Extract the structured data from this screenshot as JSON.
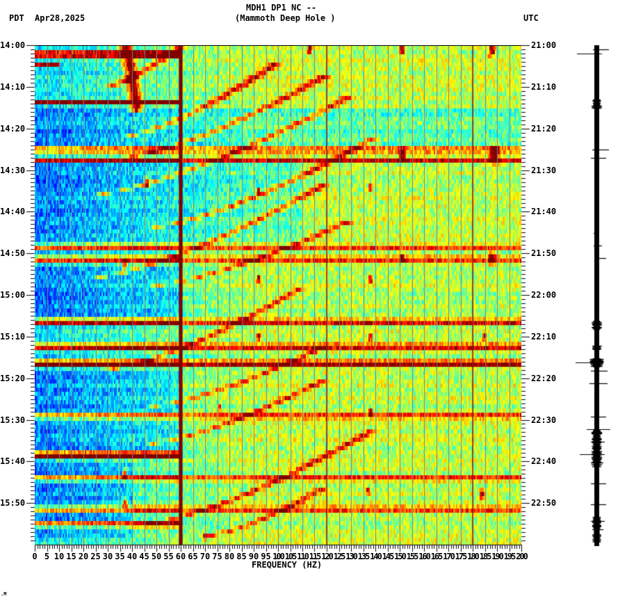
{
  "header": {
    "title_line1": "MDH1 DP1 NC --",
    "title_line2": "(Mammoth Deep Hole )",
    "left_timezone": "PDT",
    "date": "Apr28,2025",
    "right_timezone": "UTC"
  },
  "footer": {
    "corner_mark": ".M"
  },
  "chart_data": [
    {
      "type": "heatmap",
      "title": "MDH1 DP1 NC -- (Mammoth Deep Hole )",
      "subtitle": "Apr28,2025",
      "xlabel": "FREQUENCY (HZ)",
      "ylabel_left": "PDT",
      "ylabel_right": "UTC",
      "xlim": [
        0,
        200
      ],
      "x_ticks": [
        0,
        5,
        10,
        15,
        20,
        25,
        30,
        35,
        40,
        45,
        50,
        55,
        60,
        65,
        70,
        75,
        80,
        85,
        90,
        95,
        100,
        105,
        110,
        115,
        120,
        125,
        130,
        135,
        140,
        145,
        150,
        155,
        160,
        165,
        170,
        175,
        180,
        185,
        190,
        195,
        200
      ],
      "x_minor_tick_step": 1,
      "y_ticks_left": [
        "14:00",
        "14:10",
        "14:20",
        "14:30",
        "14:40",
        "14:50",
        "15:00",
        "15:10",
        "15:20",
        "15:30",
        "15:40",
        "15:50"
      ],
      "y_ticks_right": [
        "21:00",
        "21:10",
        "21:20",
        "21:30",
        "21:40",
        "21:50",
        "22:00",
        "22:10",
        "22:20",
        "22:30",
        "22:40",
        "22:50"
      ],
      "y_minor_tick_minutes": 1,
      "time_range_minutes": 120,
      "colormap": "jet",
      "grid": {
        "vertical_every_hz": 5,
        "color": "#808080"
      },
      "persistent_lines_hz": [
        {
          "freq": 60,
          "strength": "very high",
          "width_hz": 1.5
        },
        {
          "freq": 120,
          "strength": "high",
          "width_hz": 0.5
        },
        {
          "freq": 180,
          "strength": "high",
          "width_hz": 0.5
        }
      ],
      "broadband_events_min": [
        {
          "t": 2,
          "strength": 1.0,
          "fmax": 60
        },
        {
          "t": 4.5,
          "strength": 0.7,
          "fmax": 10
        },
        {
          "t": 13.5,
          "strength": 0.8,
          "fmax": 60
        },
        {
          "t": 25,
          "strength": 0.6,
          "fmax": 200
        },
        {
          "t": 27.5,
          "strength": 0.65,
          "fmax": 200
        },
        {
          "t": 48.5,
          "strength": 0.55,
          "fmax": 200
        },
        {
          "t": 51.5,
          "strength": 0.6,
          "fmax": 200
        },
        {
          "t": 66.5,
          "strength": 0.75,
          "fmax": 200
        },
        {
          "t": 72.5,
          "strength": 0.75,
          "fmax": 200
        },
        {
          "t": 76.5,
          "strength": 1.0,
          "fmax": 200
        },
        {
          "t": 89,
          "strength": 0.6,
          "fmax": 200
        },
        {
          "t": 98.5,
          "strength": 1.0,
          "fmax": 60
        },
        {
          "t": 104,
          "strength": 0.55,
          "fmax": 200
        },
        {
          "t": 111.5,
          "strength": 0.6,
          "fmax": 200
        },
        {
          "t": 115,
          "strength": 0.7,
          "fmax": 60
        }
      ],
      "low_energy_bands_min": [
        {
          "t0": 15,
          "t1": 24,
          "fmin": 0,
          "fmax": 200
        },
        {
          "t0": 28,
          "t1": 47,
          "fmin": 0,
          "fmax": 110
        },
        {
          "t0": 53,
          "t1": 65,
          "fmin": 0,
          "fmax": 60
        },
        {
          "t0": 78,
          "t1": 97,
          "fmin": 0,
          "fmax": 60
        },
        {
          "t0": 100,
          "t1": 118,
          "fmin": 0,
          "fmax": 40
        }
      ],
      "chirps": [
        {
          "t_start": 0,
          "f_start": 37,
          "t_end": 16,
          "f_end": 42,
          "strength": 0.9
        },
        {
          "t_start": 10,
          "f_start": 28,
          "t_end": 0,
          "f_end": 60,
          "strength": 0.6
        },
        {
          "t_start": 22,
          "f_start": 35,
          "t_end": 4,
          "f_end": 100,
          "strength": 0.6
        },
        {
          "t_start": 27,
          "f_start": 35,
          "t_end": 7,
          "f_end": 120,
          "strength": 0.55
        },
        {
          "t_start": 36,
          "f_start": 22,
          "t_end": 12,
          "f_end": 130,
          "strength": 0.55
        },
        {
          "t_start": 44,
          "f_start": 45,
          "t_end": 22,
          "f_end": 140,
          "strength": 0.55
        },
        {
          "t_start": 56,
          "f_start": 22,
          "t_end": 33,
          "f_end": 120,
          "strength": 0.55
        },
        {
          "t_start": 58,
          "f_start": 45,
          "t_end": 42,
          "f_end": 130,
          "strength": 0.5
        },
        {
          "t_start": 78,
          "f_start": 28,
          "t_end": 58,
          "f_end": 110,
          "strength": 0.55
        },
        {
          "t_start": 87,
          "f_start": 45,
          "t_end": 72,
          "f_end": 120,
          "strength": 0.5
        },
        {
          "t_start": 96,
          "f_start": 45,
          "t_end": 80,
          "f_end": 120,
          "strength": 0.5
        },
        {
          "t_start": 115,
          "f_start": 45,
          "t_end": 92,
          "f_end": 140,
          "strength": 0.55
        },
        {
          "t_start": 118,
          "f_start": 70,
          "t_end": 106,
          "f_end": 120,
          "strength": 0.5
        }
      ],
      "hot_spots": [
        {
          "t": 1,
          "f": 113,
          "r": 1.5
        },
        {
          "t": 1,
          "f": 151,
          "r": 1.5
        },
        {
          "t": 1,
          "f": 188,
          "r": 2
        },
        {
          "t": 26,
          "f": 151,
          "r": 2
        },
        {
          "t": 26,
          "f": 189,
          "r": 3
        },
        {
          "t": 33,
          "f": 46,
          "r": 2
        },
        {
          "t": 35,
          "f": 92,
          "r": 1.2
        },
        {
          "t": 34,
          "f": 138,
          "r": 1.2
        },
        {
          "t": 51,
          "f": 151,
          "r": 1.5
        },
        {
          "t": 51,
          "f": 188,
          "r": 2
        },
        {
          "t": 53,
          "f": 37,
          "r": 1.5
        },
        {
          "t": 56,
          "f": 92,
          "r": 1.2
        },
        {
          "t": 56,
          "f": 138,
          "r": 1.2
        },
        {
          "t": 70,
          "f": 92,
          "r": 1.2
        },
        {
          "t": 70,
          "f": 138,
          "r": 1.2
        },
        {
          "t": 70,
          "f": 185,
          "r": 1.2
        },
        {
          "t": 87,
          "f": 76,
          "r": 1.2
        },
        {
          "t": 88,
          "f": 138,
          "r": 1.2
        },
        {
          "t": 103,
          "f": 37,
          "r": 1.5
        },
        {
          "t": 107,
          "f": 137,
          "r": 1.2
        },
        {
          "t": 110,
          "f": 37,
          "r": 1.5
        },
        {
          "t": 108,
          "f": 184,
          "r": 1.5
        },
        {
          "t": 118,
          "f": 70,
          "r": 1.2
        }
      ]
    },
    {
      "type": "line",
      "title": "Seismogram trace (vertical, same time span)",
      "orientation": "vertical",
      "time_range_minutes": 120,
      "spikes": [
        {
          "t": 1,
          "left": 5,
          "right": 18
        },
        {
          "t": 2,
          "left": 28,
          "right": 8
        },
        {
          "t": 13,
          "left": 4,
          "right": 4
        },
        {
          "t": 25,
          "left": 6,
          "right": 18
        },
        {
          "t": 27,
          "left": 8,
          "right": 14
        },
        {
          "t": 45,
          "left": 4,
          "right": 4
        },
        {
          "t": 48,
          "left": 4,
          "right": 8
        },
        {
          "t": 51,
          "left": 2,
          "right": 14
        },
        {
          "t": 67,
          "left": 6,
          "right": 8
        },
        {
          "t": 72,
          "left": 6,
          "right": 8
        },
        {
          "t": 76,
          "left": 30,
          "right": 10
        },
        {
          "t": 78,
          "left": 8,
          "right": 16
        },
        {
          "t": 81,
          "left": 10,
          "right": 16
        },
        {
          "t": 89,
          "left": 8,
          "right": 14
        },
        {
          "t": 92,
          "left": 14,
          "right": 20
        },
        {
          "t": 95,
          "left": 8,
          "right": 12
        },
        {
          "t": 98,
          "left": 24,
          "right": 12
        },
        {
          "t": 100,
          "left": 8,
          "right": 10
        },
        {
          "t": 105,
          "left": 8,
          "right": 14
        },
        {
          "t": 110,
          "left": 8,
          "right": 14
        },
        {
          "t": 114,
          "left": 8,
          "right": 12
        },
        {
          "t": 116,
          "left": 6,
          "right": 10
        }
      ],
      "bursts": [
        {
          "t0": 13,
          "t1": 15,
          "w": 6
        },
        {
          "t0": 66,
          "t1": 68,
          "w": 6
        },
        {
          "t0": 72,
          "t1": 73,
          "w": 6
        },
        {
          "t0": 75,
          "t1": 77,
          "w": 8
        },
        {
          "t0": 92,
          "t1": 101,
          "w": 6
        },
        {
          "t0": 113,
          "t1": 119,
          "w": 5
        }
      ]
    }
  ]
}
